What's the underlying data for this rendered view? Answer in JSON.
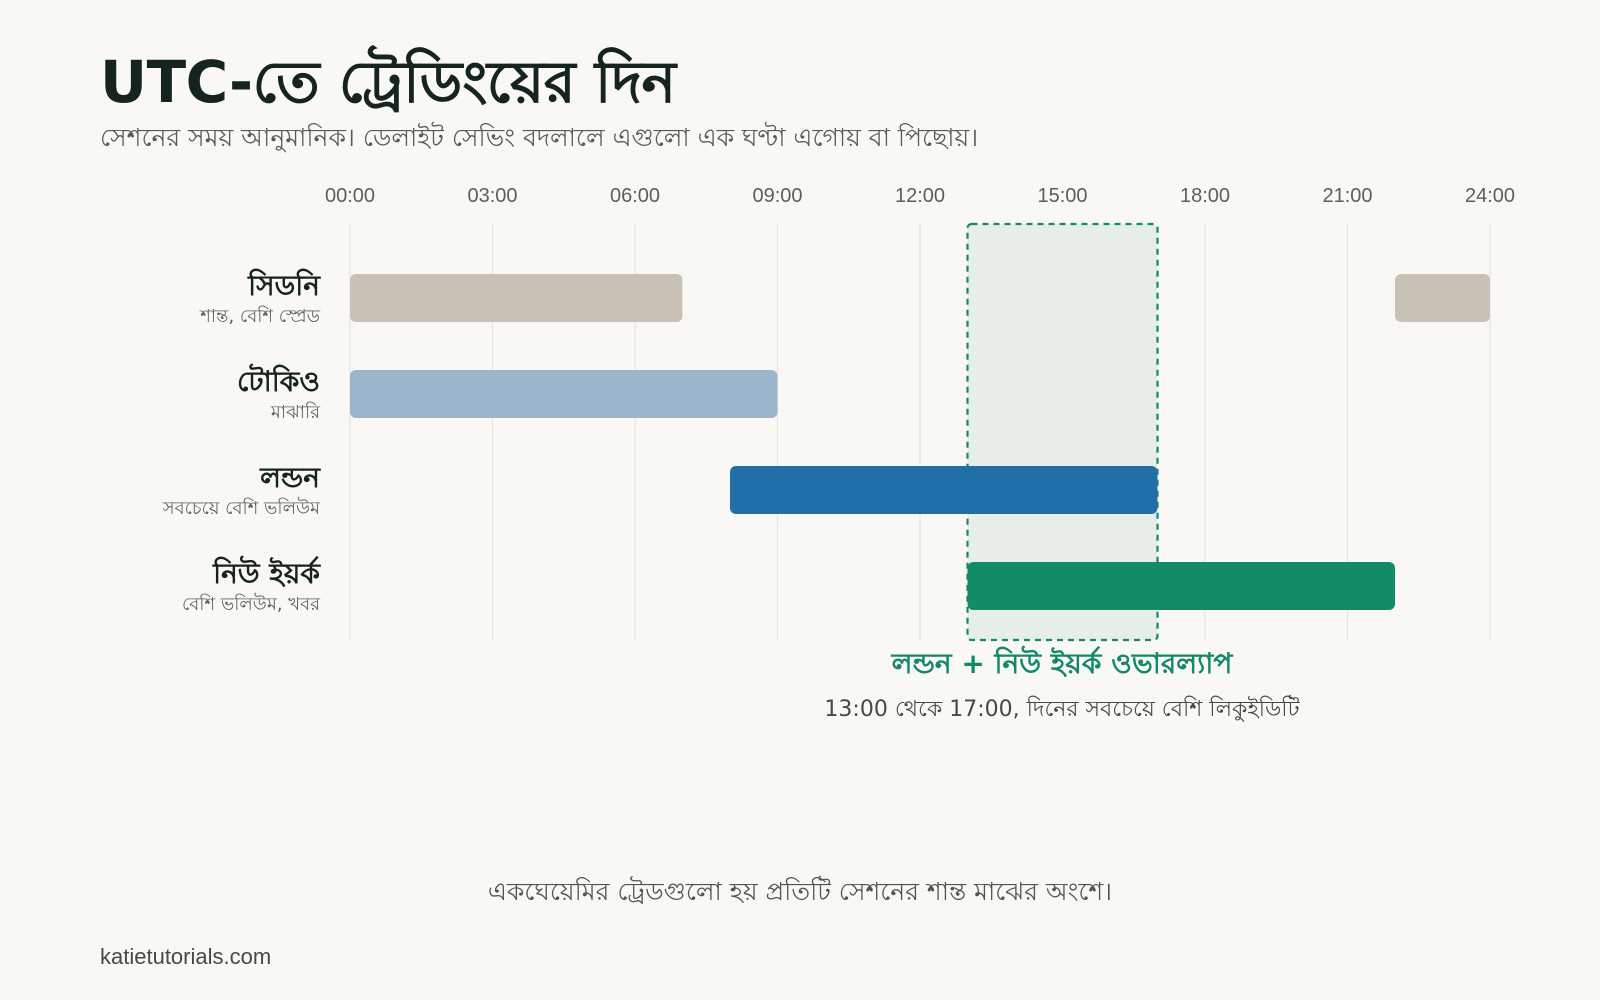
{
  "header": {
    "title": "UTC-তে ট্রেডিংয়ের দিন",
    "subtitle": "সেশনের সময় আনুমানিক। ডেলাইট সেভিং বদলালে এগুলো এক ঘণ্টা এগোয় বা পিছোয়।"
  },
  "chart_data": {
    "type": "gantt",
    "x_ticks": [
      "00:00",
      "03:00",
      "06:00",
      "09:00",
      "12:00",
      "15:00",
      "18:00",
      "21:00",
      "24:00"
    ],
    "xlim": [
      0,
      24
    ],
    "grid": true,
    "sessions": [
      {
        "name": "সিডনি",
        "note": "শান্ত, বেশি স্প্রেড",
        "color": "#c9c1b4",
        "intervals": [
          [
            0,
            7
          ],
          [
            22,
            24
          ]
        ]
      },
      {
        "name": "টোকিও",
        "note": "মাঝারি",
        "color": "#9cb4cc",
        "intervals": [
          [
            0,
            9
          ]
        ]
      },
      {
        "name": "লন্ডন",
        "note": "সবচেয়ে বেশি ভলিউম",
        "color": "#216fa8",
        "intervals": [
          [
            8,
            17
          ]
        ]
      },
      {
        "name": "নিউ ইয়র্ক",
        "note": "বেশি ভলিউম, খবর",
        "color": "#138a68",
        "intervals": [
          [
            13,
            22
          ]
        ]
      }
    ],
    "highlight": {
      "start": 13,
      "end": 17,
      "title": "লন্ডন + নিউ ইয়র্ক ওভারল্যাপ",
      "note": "13:00 থেকে 17:00, দিনের সবচেয়ে বেশি লিকুইডিটি",
      "color": "#14886a"
    }
  },
  "footer": {
    "note": "একঘেয়েমির ট্রেডগুলো হয় প্রতিটি সেশনের শান্ত মাঝের অংশে।",
    "credit": "katietutorials.com"
  }
}
